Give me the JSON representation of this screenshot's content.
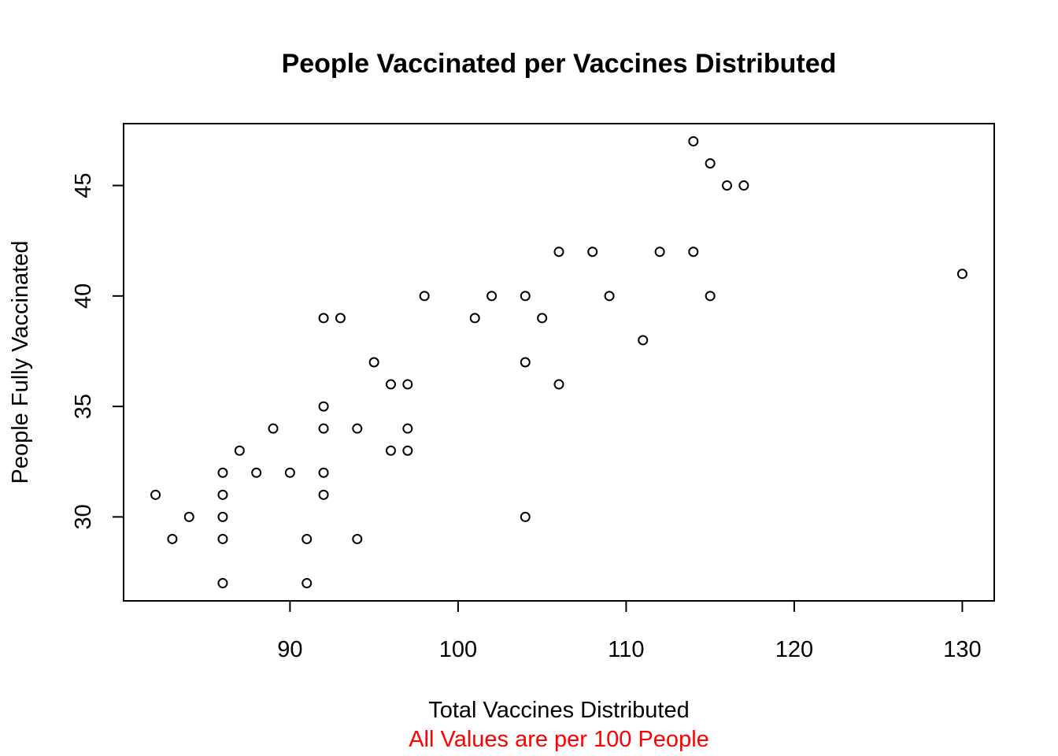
{
  "chart_data": {
    "type": "scatter",
    "title": "People Vaccinated per Vaccines Distributed",
    "xlabel": "Total Vaccines Distributed",
    "ylabel": "People Fully Vaccinated",
    "note": "All Values are per 100 People",
    "note_color": "#ff0000",
    "point_color": "#000000",
    "xlim": [
      80.1,
      131.9
    ],
    "ylim": [
      26.2,
      47.8
    ],
    "xticks": [
      90,
      100,
      110,
      120,
      130
    ],
    "yticks": [
      30,
      35,
      40,
      45
    ],
    "grid": false,
    "legend": "none",
    "points": [
      {
        "x": 82,
        "y": 31
      },
      {
        "x": 83,
        "y": 29
      },
      {
        "x": 84,
        "y": 30
      },
      {
        "x": 86,
        "y": 27
      },
      {
        "x": 86,
        "y": 29
      },
      {
        "x": 86,
        "y": 30
      },
      {
        "x": 86,
        "y": 31
      },
      {
        "x": 86,
        "y": 32
      },
      {
        "x": 87,
        "y": 33
      },
      {
        "x": 88,
        "y": 32
      },
      {
        "x": 89,
        "y": 34
      },
      {
        "x": 90,
        "y": 32
      },
      {
        "x": 91,
        "y": 27
      },
      {
        "x": 91,
        "y": 29
      },
      {
        "x": 92,
        "y": 31
      },
      {
        "x": 92,
        "y": 32
      },
      {
        "x": 92,
        "y": 34
      },
      {
        "x": 92,
        "y": 35
      },
      {
        "x": 92,
        "y": 39
      },
      {
        "x": 93,
        "y": 39
      },
      {
        "x": 94,
        "y": 29
      },
      {
        "x": 94,
        "y": 34
      },
      {
        "x": 95,
        "y": 37
      },
      {
        "x": 96,
        "y": 33
      },
      {
        "x": 96,
        "y": 36
      },
      {
        "x": 97,
        "y": 33
      },
      {
        "x": 97,
        "y": 34
      },
      {
        "x": 97,
        "y": 36
      },
      {
        "x": 98,
        "y": 40
      },
      {
        "x": 101,
        "y": 39
      },
      {
        "x": 102,
        "y": 40
      },
      {
        "x": 104,
        "y": 30
      },
      {
        "x": 104,
        "y": 37
      },
      {
        "x": 104,
        "y": 40
      },
      {
        "x": 105,
        "y": 39
      },
      {
        "x": 106,
        "y": 36
      },
      {
        "x": 106,
        "y": 42
      },
      {
        "x": 108,
        "y": 42
      },
      {
        "x": 109,
        "y": 40
      },
      {
        "x": 111,
        "y": 38
      },
      {
        "x": 112,
        "y": 42
      },
      {
        "x": 114,
        "y": 42
      },
      {
        "x": 114,
        "y": 47
      },
      {
        "x": 115,
        "y": 40
      },
      {
        "x": 115,
        "y": 46
      },
      {
        "x": 116,
        "y": 45
      },
      {
        "x": 117,
        "y": 45
      },
      {
        "x": 130,
        "y": 41
      }
    ]
  }
}
